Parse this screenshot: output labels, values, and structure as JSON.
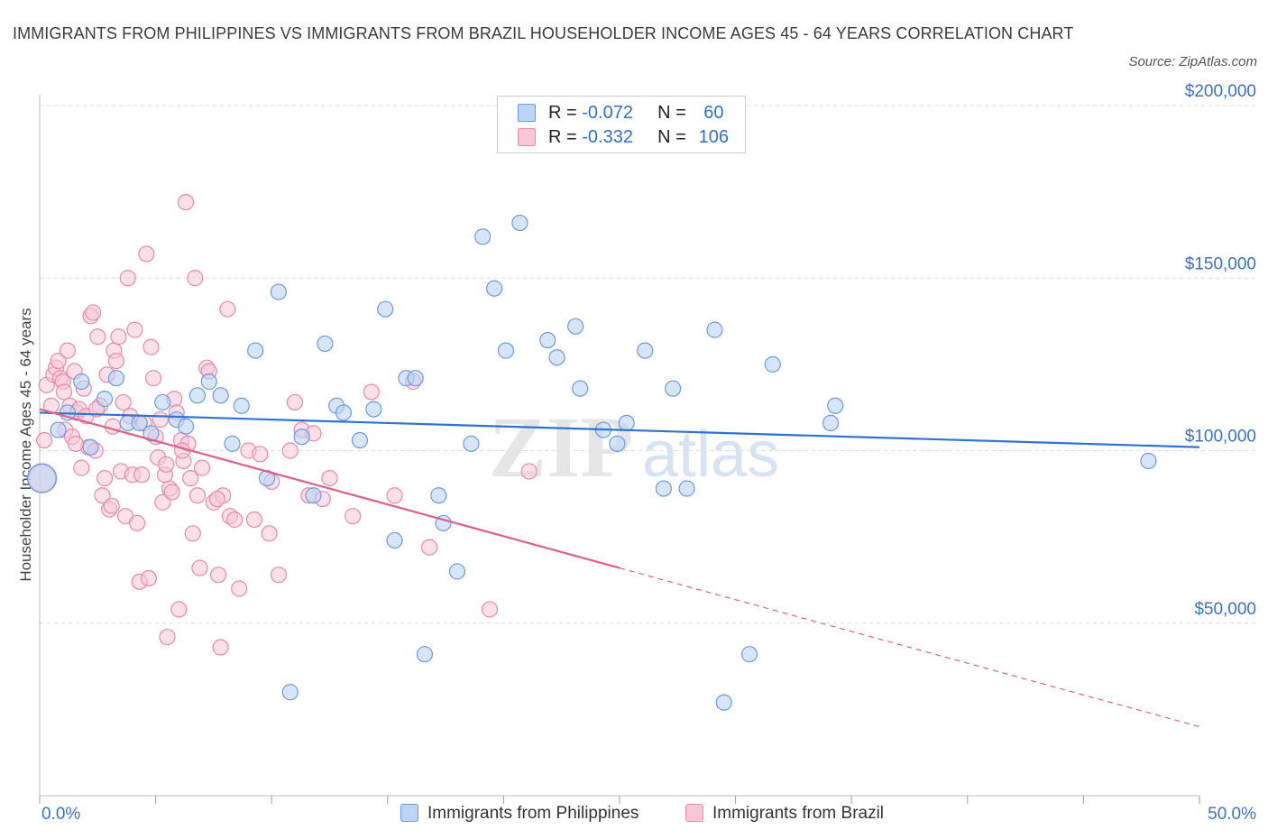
{
  "title": "IMMIGRANTS FROM PHILIPPINES VS IMMIGRANTS FROM BRAZIL HOUSEHOLDER INCOME AGES 45 - 64 YEARS CORRELATION CHART",
  "source": "Source: ZipAtlas.com",
  "watermark": {
    "zip": "ZIP",
    "atlas": "atlas"
  },
  "legend": {
    "rows": [
      {
        "r_label": "R = ",
        "r_value": "-0.072",
        "n_label": "N = ",
        "n_value": "60"
      },
      {
        "r_label": "R = ",
        "r_value": "-0.332",
        "n_label": "N = ",
        "n_value": "106"
      }
    ]
  },
  "colors": {
    "philippines_fill": "#bcd4f5",
    "philippines_stroke": "#6c9be0",
    "philippines_line": "#2f72cf",
    "brazil_fill": "#f8c6d6",
    "brazil_stroke": "#e88aaa",
    "brazil_line": "#e0608c",
    "axis_label": "#3a72c8",
    "grid": "#dcdcdc"
  },
  "chart_data": {
    "type": "scatter",
    "title": "IMMIGRANTS FROM PHILIPPINES VS IMMIGRANTS FROM BRAZIL HOUSEHOLDER INCOME AGES 45 - 64 YEARS CORRELATION CHART",
    "xlabel": "",
    "ylabel": "Householder Income Ages 45 - 64 years",
    "xlim": [
      0,
      50
    ],
    "ylim": [
      0,
      200000
    ],
    "x_tick_labels": [
      "0.0%",
      "50.0%"
    ],
    "y_tick_values": [
      50000,
      100000,
      150000,
      200000
    ],
    "y_tick_labels": [
      "$50,000",
      "$100,000",
      "$150,000",
      "$200,000"
    ],
    "grid": true,
    "legend_position": "top-center",
    "series": [
      {
        "name": "Immigrants from Philippines",
        "trend": {
          "x": [
            0,
            50
          ],
          "y": [
            111000,
            101000
          ],
          "dashed_from_x": null
        },
        "points": [
          {
            "x": 0.1,
            "y": 92000,
            "big": true
          },
          {
            "x": 0.8,
            "y": 106000
          },
          {
            "x": 1.2,
            "y": 111000
          },
          {
            "x": 1.8,
            "y": 120000
          },
          {
            "x": 2.2,
            "y": 101000
          },
          {
            "x": 2.8,
            "y": 115000
          },
          {
            "x": 3.3,
            "y": 121000
          },
          {
            "x": 3.8,
            "y": 108000
          },
          {
            "x": 4.3,
            "y": 108000
          },
          {
            "x": 4.8,
            "y": 105000
          },
          {
            "x": 5.3,
            "y": 114000
          },
          {
            "x": 5.9,
            "y": 109000
          },
          {
            "x": 6.3,
            "y": 107000
          },
          {
            "x": 6.8,
            "y": 116000
          },
          {
            "x": 7.3,
            "y": 120000
          },
          {
            "x": 7.8,
            "y": 116000
          },
          {
            "x": 8.3,
            "y": 102000
          },
          {
            "x": 8.7,
            "y": 113000
          },
          {
            "x": 9.3,
            "y": 129000
          },
          {
            "x": 9.8,
            "y": 92000
          },
          {
            "x": 10.3,
            "y": 146000
          },
          {
            "x": 10.8,
            "y": 30000
          },
          {
            "x": 11.3,
            "y": 104000
          },
          {
            "x": 11.8,
            "y": 87000
          },
          {
            "x": 12.3,
            "y": 131000
          },
          {
            "x": 12.8,
            "y": 113000
          },
          {
            "x": 13.1,
            "y": 111000
          },
          {
            "x": 13.8,
            "y": 103000
          },
          {
            "x": 14.4,
            "y": 112000
          },
          {
            "x": 14.9,
            "y": 141000
          },
          {
            "x": 15.3,
            "y": 74000
          },
          {
            "x": 15.8,
            "y": 121000
          },
          {
            "x": 16.2,
            "y": 121000
          },
          {
            "x": 16.6,
            "y": 41000
          },
          {
            "x": 17.2,
            "y": 87000
          },
          {
            "x": 17.4,
            "y": 79000
          },
          {
            "x": 18.0,
            "y": 65000
          },
          {
            "x": 18.6,
            "y": 102000
          },
          {
            "x": 19.1,
            "y": 162000
          },
          {
            "x": 19.6,
            "y": 147000
          },
          {
            "x": 20.1,
            "y": 129000
          },
          {
            "x": 20.7,
            "y": 166000
          },
          {
            "x": 21.9,
            "y": 132000
          },
          {
            "x": 22.3,
            "y": 127000
          },
          {
            "x": 23.1,
            "y": 136000
          },
          {
            "x": 23.3,
            "y": 118000
          },
          {
            "x": 24.3,
            "y": 106000
          },
          {
            "x": 24.9,
            "y": 102000
          },
          {
            "x": 25.3,
            "y": 108000
          },
          {
            "x": 26.1,
            "y": 129000
          },
          {
            "x": 26.9,
            "y": 89000
          },
          {
            "x": 27.3,
            "y": 118000
          },
          {
            "x": 27.9,
            "y": 89000
          },
          {
            "x": 29.1,
            "y": 135000
          },
          {
            "x": 29.5,
            "y": 27000
          },
          {
            "x": 30.6,
            "y": 41000
          },
          {
            "x": 31.6,
            "y": 125000
          },
          {
            "x": 34.1,
            "y": 108000
          },
          {
            "x": 34.3,
            "y": 113000
          },
          {
            "x": 47.8,
            "y": 97000
          }
        ]
      },
      {
        "name": "Immigrants from Brazil",
        "trend": {
          "x": [
            0,
            25,
            50
          ],
          "y": [
            112000,
            66000,
            20000
          ],
          "dashed_from_x": 25
        },
        "points": [
          {
            "x": 0.1,
            "y": 92000,
            "big": true
          },
          {
            "x": 0.2,
            "y": 103000
          },
          {
            "x": 0.3,
            "y": 119000
          },
          {
            "x": 0.5,
            "y": 113000
          },
          {
            "x": 0.6,
            "y": 122000
          },
          {
            "x": 0.7,
            "y": 124000
          },
          {
            "x": 0.8,
            "y": 126000
          },
          {
            "x": 0.9,
            "y": 121000
          },
          {
            "x": 1.0,
            "y": 120000
          },
          {
            "x": 1.1,
            "y": 106000
          },
          {
            "x": 1.2,
            "y": 129000
          },
          {
            "x": 1.3,
            "y": 113000
          },
          {
            "x": 1.4,
            "y": 104000
          },
          {
            "x": 1.5,
            "y": 123000
          },
          {
            "x": 1.6,
            "y": 111000
          },
          {
            "x": 1.7,
            "y": 112000
          },
          {
            "x": 1.8,
            "y": 95000
          },
          {
            "x": 1.9,
            "y": 118000
          },
          {
            "x": 2.0,
            "y": 110000
          },
          {
            "x": 2.1,
            "y": 101000
          },
          {
            "x": 2.2,
            "y": 139000
          },
          {
            "x": 2.3,
            "y": 140000
          },
          {
            "x": 2.4,
            "y": 100000
          },
          {
            "x": 2.5,
            "y": 133000
          },
          {
            "x": 2.6,
            "y": 113000
          },
          {
            "x": 2.7,
            "y": 87000
          },
          {
            "x": 2.8,
            "y": 92000
          },
          {
            "x": 2.9,
            "y": 122000
          },
          {
            "x": 3.0,
            "y": 83000
          },
          {
            "x": 3.1,
            "y": 84000
          },
          {
            "x": 3.2,
            "y": 129000
          },
          {
            "x": 3.3,
            "y": 126000
          },
          {
            "x": 3.4,
            "y": 133000
          },
          {
            "x": 3.5,
            "y": 94000
          },
          {
            "x": 3.6,
            "y": 114000
          },
          {
            "x": 3.7,
            "y": 81000
          },
          {
            "x": 3.8,
            "y": 150000
          },
          {
            "x": 3.9,
            "y": 110000
          },
          {
            "x": 4.0,
            "y": 93000
          },
          {
            "x": 4.1,
            "y": 135000
          },
          {
            "x": 4.2,
            "y": 79000
          },
          {
            "x": 4.3,
            "y": 62000
          },
          {
            "x": 4.4,
            "y": 93000
          },
          {
            "x": 4.5,
            "y": 108000
          },
          {
            "x": 4.6,
            "y": 157000
          },
          {
            "x": 4.7,
            "y": 63000
          },
          {
            "x": 4.8,
            "y": 130000
          },
          {
            "x": 4.9,
            "y": 121000
          },
          {
            "x": 5.0,
            "y": 104000
          },
          {
            "x": 5.1,
            "y": 98000
          },
          {
            "x": 5.2,
            "y": 109000
          },
          {
            "x": 5.3,
            "y": 85000
          },
          {
            "x": 5.4,
            "y": 93000
          },
          {
            "x": 5.5,
            "y": 46000
          },
          {
            "x": 5.6,
            "y": 89000
          },
          {
            "x": 5.7,
            "y": 88000
          },
          {
            "x": 5.8,
            "y": 115000
          },
          {
            "x": 5.9,
            "y": 111000
          },
          {
            "x": 6.0,
            "y": 54000
          },
          {
            "x": 6.1,
            "y": 103000
          },
          {
            "x": 6.2,
            "y": 97000
          },
          {
            "x": 6.3,
            "y": 172000
          },
          {
            "x": 6.4,
            "y": 102000
          },
          {
            "x": 6.5,
            "y": 92000
          },
          {
            "x": 6.6,
            "y": 76000
          },
          {
            "x": 6.7,
            "y": 150000
          },
          {
            "x": 6.8,
            "y": 87000
          },
          {
            "x": 6.9,
            "y": 66000
          },
          {
            "x": 7.0,
            "y": 95000
          },
          {
            "x": 7.2,
            "y": 124000
          },
          {
            "x": 7.3,
            "y": 123000
          },
          {
            "x": 7.5,
            "y": 85000
          },
          {
            "x": 7.7,
            "y": 64000
          },
          {
            "x": 7.8,
            "y": 43000
          },
          {
            "x": 7.9,
            "y": 87000
          },
          {
            "x": 8.1,
            "y": 141000
          },
          {
            "x": 8.2,
            "y": 81000
          },
          {
            "x": 8.4,
            "y": 80000
          },
          {
            "x": 8.6,
            "y": 60000
          },
          {
            "x": 9.0,
            "y": 100000
          },
          {
            "x": 9.5,
            "y": 99000
          },
          {
            "x": 9.9,
            "y": 76000
          },
          {
            "x": 10.0,
            "y": 91000
          },
          {
            "x": 10.3,
            "y": 64000
          },
          {
            "x": 10.8,
            "y": 100000
          },
          {
            "x": 11.0,
            "y": 114000
          },
          {
            "x": 11.3,
            "y": 106000
          },
          {
            "x": 11.6,
            "y": 87000
          },
          {
            "x": 11.8,
            "y": 105000
          },
          {
            "x": 12.2,
            "y": 86000
          },
          {
            "x": 12.5,
            "y": 92000
          },
          {
            "x": 13.5,
            "y": 81000
          },
          {
            "x": 14.3,
            "y": 117000
          },
          {
            "x": 15.3,
            "y": 87000
          },
          {
            "x": 16.1,
            "y": 120000
          },
          {
            "x": 16.8,
            "y": 72000
          },
          {
            "x": 19.4,
            "y": 54000
          },
          {
            "x": 21.1,
            "y": 94000
          },
          {
            "x": 1.05,
            "y": 117000
          },
          {
            "x": 1.55,
            "y": 102000
          },
          {
            "x": 2.45,
            "y": 112000
          },
          {
            "x": 3.15,
            "y": 107000
          },
          {
            "x": 5.45,
            "y": 96000
          },
          {
            "x": 6.15,
            "y": 100000
          },
          {
            "x": 7.65,
            "y": 86000
          },
          {
            "x": 9.25,
            "y": 80000
          }
        ]
      }
    ]
  },
  "bottom_legend": {
    "items": [
      "Immigrants from Philippines",
      "Immigrants from Brazil"
    ]
  }
}
